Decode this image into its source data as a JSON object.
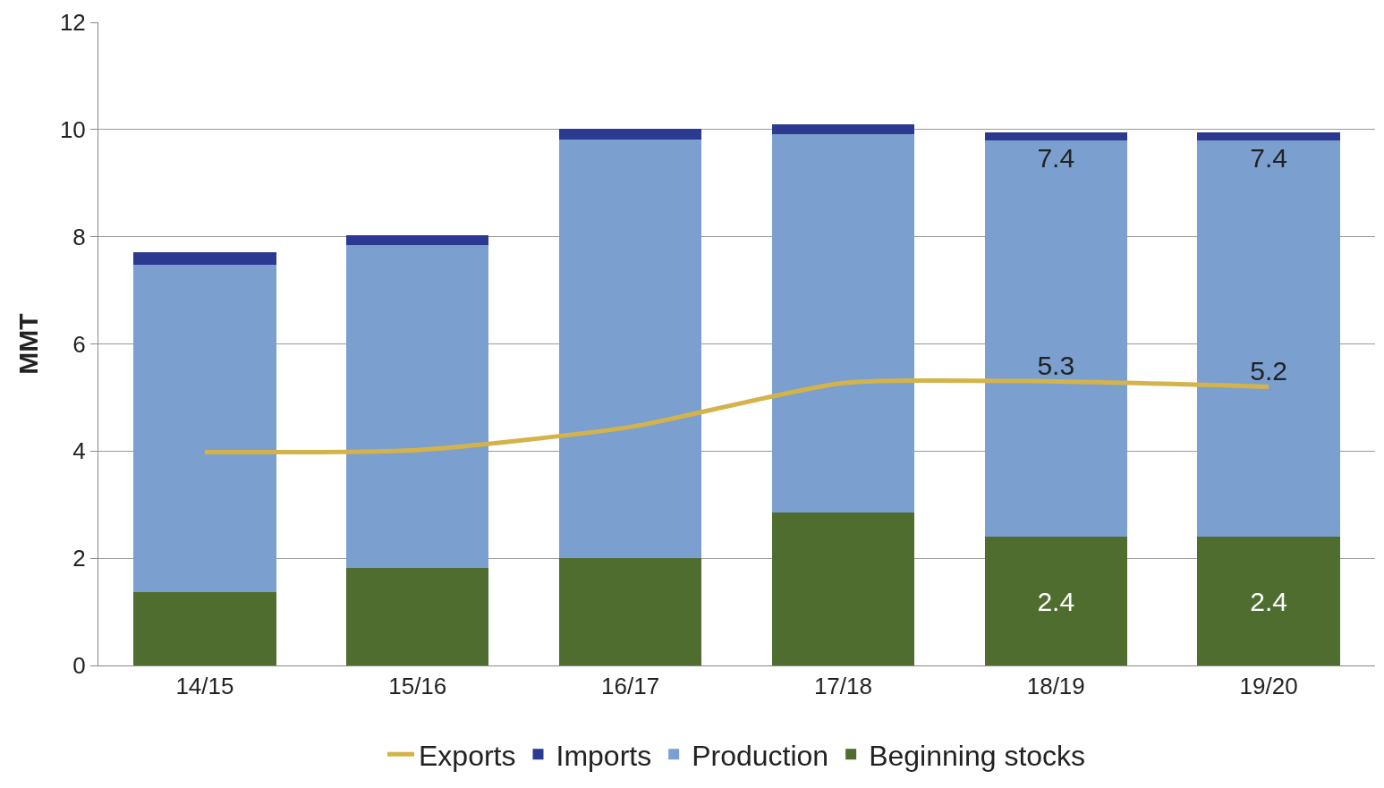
{
  "chart_data": {
    "type": "bar",
    "stacked": true,
    "ylabel": "MMT",
    "categories": [
      "14/15",
      "15/16",
      "16/17",
      "17/18",
      "18/19",
      "19/20"
    ],
    "ylim": [
      0,
      12
    ],
    "yticks": [
      0,
      2,
      4,
      6,
      8,
      10,
      12
    ],
    "grid": "y",
    "legend": "bottom",
    "series": [
      {
        "name": "Beginning stocks",
        "color": "#4f6d2f",
        "values": [
          1.37,
          1.82,
          2.01,
          2.86,
          2.4,
          2.4
        ],
        "value_labels": [
          null,
          null,
          null,
          null,
          "2.4",
          "2.4"
        ]
      },
      {
        "name": "Production",
        "color": "#7b9fcf",
        "values": [
          6.1,
          6.02,
          7.81,
          7.05,
          7.4,
          7.4
        ],
        "value_labels": [
          null,
          null,
          null,
          null,
          "7.4",
          "7.4"
        ]
      },
      {
        "name": "Imports",
        "color": "#2b3990",
        "values": [
          0.24,
          0.18,
          0.2,
          0.19,
          0.15,
          0.15
        ]
      },
      {
        "name": "Exports",
        "type": "line",
        "color": "#d4b44a",
        "values": [
          3.98,
          4.02,
          4.45,
          5.27,
          5.3,
          5.2
        ],
        "value_labels": [
          null,
          null,
          null,
          null,
          "5.3",
          "5.2"
        ]
      }
    ]
  }
}
